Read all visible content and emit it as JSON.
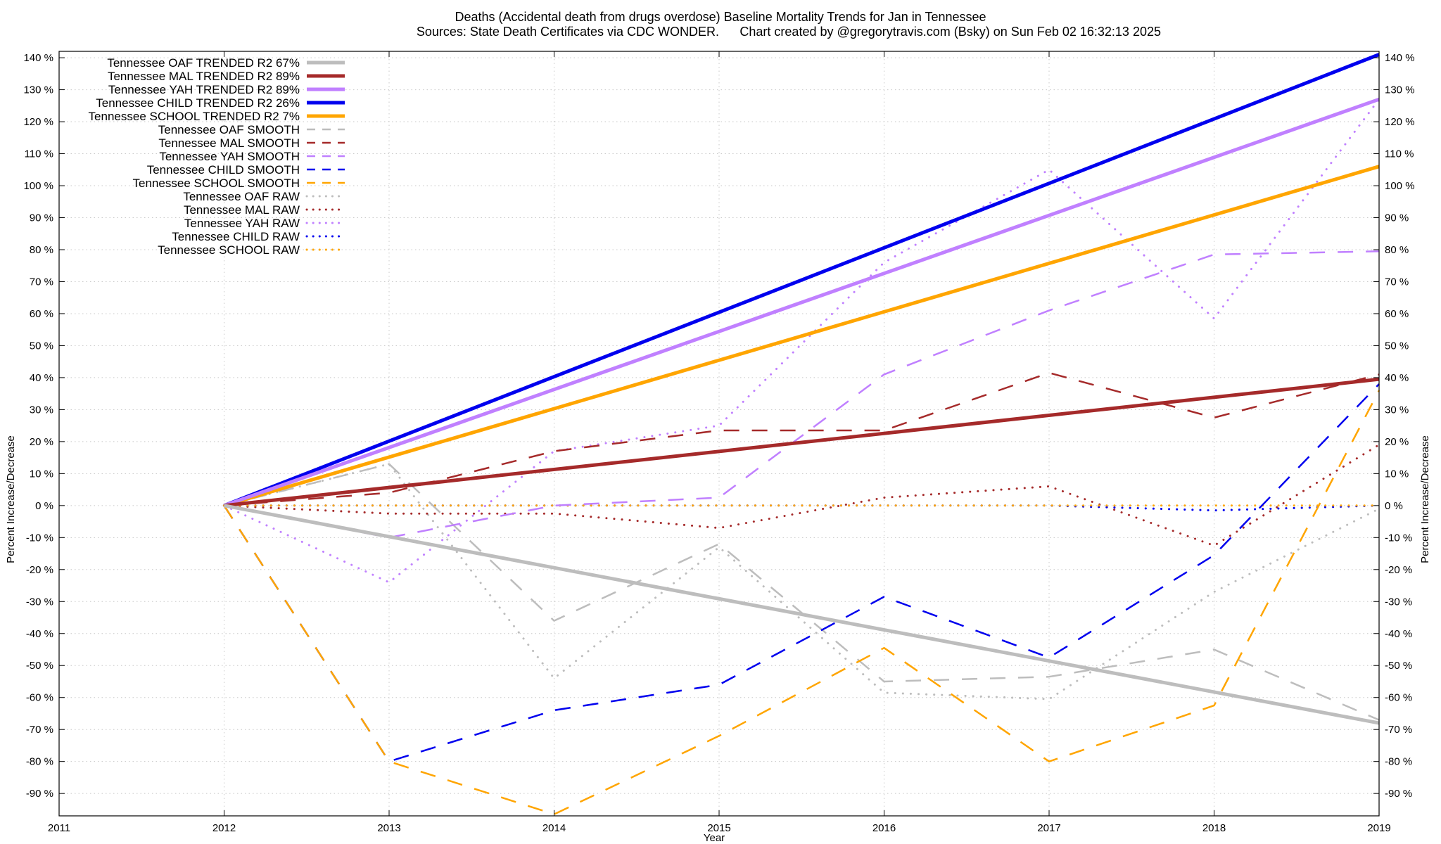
{
  "chart_data": {
    "type": "line",
    "title": "Deaths (Accidental death from drugs overdose)  Baseline Mortality Trends for Jan in Tennessee",
    "subtitle_left": "Sources: State Death Certificates via CDC WONDER.",
    "subtitle_right": "Chart created by @gregorytravis.com (Bsky) on Sun Feb 02 16:32:13 2025",
    "xlabel": "Year",
    "ylabel": "Percent Increase/Decrease",
    "xlim": [
      2011,
      2019
    ],
    "ylim": [
      -97,
      142
    ],
    "x_ticks": [
      2011,
      2012,
      2013,
      2014,
      2015,
      2016,
      2017,
      2018,
      2019
    ],
    "x_tick_labels": [
      "2011",
      "2012",
      "2013",
      "2014",
      "2015",
      "2016",
      "2017",
      "2018",
      "2019"
    ],
    "y_ticks": [
      -90,
      -80,
      -70,
      -60,
      -50,
      -40,
      -30,
      -20,
      -10,
      0,
      10,
      20,
      30,
      40,
      50,
      60,
      70,
      80,
      90,
      100,
      110,
      120,
      130,
      140
    ],
    "y_tick_labels": [
      "-90 %",
      "-80 %",
      "-70 %",
      "-60 %",
      "-50 %",
      "-40 %",
      "-30 %",
      "-20 %",
      "-10 %",
      "0 %",
      "10 %",
      "20 %",
      "30 %",
      "40 %",
      "50 %",
      "60 %",
      "70 %",
      "80 %",
      "90 %",
      "100 %",
      "110 %",
      "120 %",
      "130 %",
      "140 %"
    ],
    "grid": true,
    "legend_position": "top-left",
    "x": [
      2012,
      2013,
      2014,
      2015,
      2016,
      2017,
      2018,
      2019
    ],
    "series": [
      {
        "name": "Tennessee OAF TRENDED R2  67%",
        "style": "trend",
        "color": "#bdbdbd",
        "x": [
          2012,
          2019
        ],
        "values": [
          0,
          -68
        ]
      },
      {
        "name": "Tennessee MAL TRENDED R2  89%",
        "style": "trend",
        "color": "#a52a2a",
        "x": [
          2012,
          2019
        ],
        "values": [
          0,
          39.5
        ]
      },
      {
        "name": "Tennessee YAH TRENDED R2  89%",
        "style": "trend",
        "color": "#c080ff",
        "x": [
          2012,
          2019
        ],
        "values": [
          0,
          127
        ]
      },
      {
        "name": "Tennessee CHILD TRENDED R2  26%",
        "style": "trend",
        "color": "#0000ee",
        "x": [
          2012,
          2019
        ],
        "values": [
          0,
          141
        ]
      },
      {
        "name": "Tennessee SCHOOL TRENDED R2   7%",
        "style": "trend",
        "color": "#ffa500",
        "x": [
          2012,
          2019
        ],
        "values": [
          0,
          106
        ]
      },
      {
        "name": "Tennessee OAF SMOOTH",
        "style": "smooth",
        "color": "#bdbdbd",
        "values": [
          0,
          13,
          -36,
          -12,
          -55,
          -53.5,
          -45,
          -67
        ]
      },
      {
        "name": "Tennessee MAL SMOOTH",
        "style": "smooth",
        "color": "#a52a2a",
        "values": [
          0,
          4,
          17,
          23.5,
          23.5,
          41.5,
          27.5,
          41
        ]
      },
      {
        "name": "Tennessee YAH SMOOTH",
        "style": "smooth",
        "color": "#c080ff",
        "values": [
          0,
          -10,
          0,
          2.5,
          41,
          61,
          78.5,
          79.5
        ]
      },
      {
        "name": "Tennessee CHILD SMOOTH",
        "style": "smooth",
        "color": "#0000ee",
        "values": [
          0,
          -80,
          -64,
          -56,
          -28.5,
          -47.5,
          -15.5,
          38
        ]
      },
      {
        "name": "Tennessee SCHOOL SMOOTH",
        "style": "smooth",
        "color": "#ffa500",
        "values": [
          0,
          -80,
          -96.5,
          -72,
          -44.5,
          -80,
          -62.5,
          36
        ]
      },
      {
        "name": "Tennessee OAF RAW",
        "style": "raw",
        "color": "#bdbdbd",
        "values": [
          0,
          13,
          -54,
          -13,
          -58.5,
          -60.5,
          -27,
          -1
        ]
      },
      {
        "name": "Tennessee MAL RAW",
        "style": "raw",
        "color": "#a52a2a",
        "values": [
          0,
          -2.5,
          -2.5,
          -7,
          2.5,
          6,
          -12.5,
          19
        ]
      },
      {
        "name": "Tennessee YAH RAW",
        "style": "raw",
        "color": "#c080ff",
        "values": [
          0,
          -24,
          17,
          25,
          76,
          105,
          58.5,
          127
        ]
      },
      {
        "name": "Tennessee CHILD RAW",
        "style": "raw",
        "color": "#0000ee",
        "values": [
          0,
          0,
          0,
          0,
          0,
          0,
          -1.5,
          0
        ]
      },
      {
        "name": "Tennessee SCHOOL RAW",
        "style": "raw",
        "color": "#ffa500",
        "values": [
          0,
          0,
          0,
          0,
          0,
          0,
          0,
          0
        ]
      }
    ]
  }
}
